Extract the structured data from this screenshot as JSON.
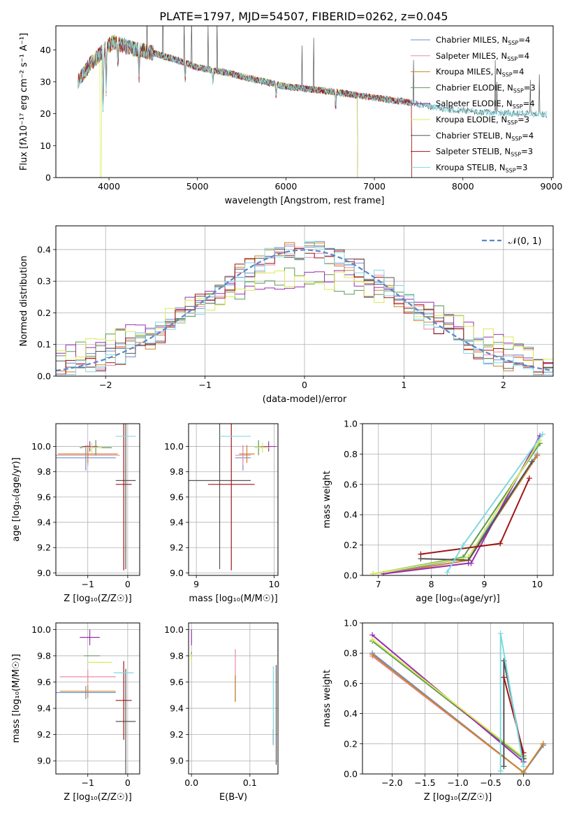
{
  "title": "PLATE=1797, MJD=54507, FIBERID=0262, z=0.045",
  "series": [
    {
      "key": "chabrier_miles",
      "name": "Chabrier MILES",
      "nssp": "4",
      "color": "#6a8fd0"
    },
    {
      "key": "salpeter_miles",
      "name": "Salpeter MILES",
      "nssp": "4",
      "color": "#e88ca6"
    },
    {
      "key": "kroupa_miles",
      "name": "Kroupa MILES",
      "nssp": "4",
      "color": "#c8862a"
    },
    {
      "key": "chabrier_elodie",
      "name": "Chabrier ELODIE",
      "nssp": "3",
      "color": "#5a9a55"
    },
    {
      "key": "salpeter_elodie",
      "name": "Salpeter ELODIE",
      "nssp": "4",
      "color": "#9a2fb0"
    },
    {
      "key": "kroupa_elodie",
      "name": "Kroupa ELODIE",
      "nssp": "3",
      "color": "#d9ea55"
    },
    {
      "key": "chabrier_stelib",
      "name": "Chabrier STELIB",
      "nssp": "4",
      "color": "#555555"
    },
    {
      "key": "salpeter_stelib",
      "name": "Salpeter STELIB",
      "nssp": "3",
      "color": "#a01515"
    },
    {
      "key": "kroupa_stelib",
      "name": "Kroupa STELIB",
      "nssp": "3",
      "color": "#80d8e0"
    }
  ],
  "chart_data": [
    {
      "id": "spectrum",
      "type": "line",
      "xlabel": "wavelength [Angstrom, rest frame]",
      "ylabel": "Flux [fλ10⁻¹⁷ erg cm⁻² s⁻¹ A⁻¹]",
      "xlim": [
        3400,
        9020
      ],
      "ylim": [
        0,
        47.5
      ],
      "xticks": [
        4000,
        5000,
        6000,
        7000,
        8000,
        9000
      ],
      "yticks": [
        0,
        10,
        20,
        30,
        40
      ],
      "legend": "top-right",
      "continuum": {
        "x": [
          3650,
          3800,
          3950,
          4050,
          4250,
          4500,
          4800,
          5000,
          5300,
          5600,
          6000,
          6500,
          7000,
          7400,
          7800,
          8200,
          8700,
          8950
        ],
        "y": [
          30,
          36,
          40,
          42.5,
          40.5,
          39,
          36.5,
          34.5,
          33,
          31,
          28.5,
          27,
          25,
          23.5,
          21.5,
          20.5,
          20,
          19.8
        ]
      }
    },
    {
      "id": "residuals",
      "type": "bar",
      "xlabel": "(data-model)/error",
      "ylabel": "Normed distribution",
      "xlim": [
        -2.5,
        2.5
      ],
      "ylim": [
        0,
        0.475
      ],
      "xticks": [
        -2,
        -1,
        0,
        1,
        2
      ],
      "yticks": [
        0,
        0.1,
        0.2,
        0.3,
        0.4
      ],
      "grid": true,
      "legend": "top-right",
      "gaussian_label": "𝒩(0, 1)",
      "gaussian": {
        "mean": 0,
        "sigma": 1
      }
    },
    {
      "id": "age-vs-z",
      "type": "scatter",
      "xlabel": "Z [log₁₀(Z/Z☉)]",
      "ylabel": "age  [log₁₀(age/yr)]",
      "xlim": [
        -1.8,
        0.3
      ],
      "ylim": [
        8.98,
        10.18
      ],
      "xticks": [
        -1,
        0
      ],
      "yticks": [
        9.0,
        9.2,
        9.4,
        9.6,
        9.8,
        10.0
      ],
      "grid": true,
      "points": [
        {
          "s": 0,
          "x": -1.05,
          "xerr": 0.75,
          "y": 9.91,
          "yerr": 0.1
        },
        {
          "s": 1,
          "x": -1.0,
          "xerr": 0.8,
          "y": 9.93,
          "yerr": 0.08
        },
        {
          "s": 2,
          "x": -1.0,
          "xerr": 0.75,
          "y": 9.94,
          "yerr": 0.07
        },
        {
          "s": 3,
          "x": -0.8,
          "xerr": 0.4,
          "y": 9.99,
          "yerr": 0.06
        },
        {
          "s": 4,
          "x": -0.95,
          "xerr": 0.2,
          "y": 10.0,
          "yerr": 0.04
        },
        {
          "s": 5,
          "x": -0.9,
          "xerr": 0.25,
          "y": 9.99,
          "yerr": 0.04
        },
        {
          "s": 6,
          "x": -0.05,
          "xerr": 0.25,
          "y": 9.73,
          "yerr": 0.7
        },
        {
          "s": 7,
          "x": -0.1,
          "xerr": 0.2,
          "y": 9.7,
          "yerr": 0.68
        },
        {
          "s": 8,
          "x": -0.05,
          "xerr": 0.25,
          "y": 10.08,
          "yerr": 0.0
        }
      ]
    },
    {
      "id": "age-vs-mass",
      "type": "scatter",
      "xlabel": "mass [log₁₀(M/M☉)]",
      "ylabel": "",
      "xlim": [
        8.9,
        10.05
      ],
      "ylim": [
        8.98,
        10.18
      ],
      "xticks": [
        9,
        10
      ],
      "yticks": [
        9.0,
        9.2,
        9.4,
        9.6,
        9.8,
        10.0
      ],
      "grid": true,
      "points": [
        {
          "s": 0,
          "x": 9.6,
          "xerr": 0.1,
          "y": 9.91,
          "yerr": 0.1
        },
        {
          "s": 1,
          "x": 9.6,
          "xerr": 0.1,
          "y": 9.93,
          "yerr": 0.08
        },
        {
          "s": 2,
          "x": 9.65,
          "xerr": 0.1,
          "y": 9.94,
          "yerr": 0.07
        },
        {
          "s": 3,
          "x": 9.8,
          "xerr": 0.05,
          "y": 9.99,
          "yerr": 0.06
        },
        {
          "s": 4,
          "x": 9.93,
          "xerr": 0.1,
          "y": 10.0,
          "yerr": 0.04
        },
        {
          "s": 5,
          "x": 9.85,
          "xerr": 0.1,
          "y": 9.99,
          "yerr": 0.04
        },
        {
          "s": 6,
          "x": 9.3,
          "xerr": 0.4,
          "y": 9.73,
          "yerr": 0.7
        },
        {
          "s": 7,
          "x": 9.45,
          "xerr": 0.3,
          "y": 9.7,
          "yerr": 0.68
        },
        {
          "s": 8,
          "x": 9.5,
          "xerr": 0.2,
          "y": 10.08,
          "yerr": 0.0
        }
      ]
    },
    {
      "id": "weight-vs-age",
      "type": "line",
      "xlabel": "age  [log₁₀(age/yr)]",
      "ylabel": "mass weight",
      "xlim": [
        6.7,
        10.3
      ],
      "ylim": [
        0,
        1.0
      ],
      "xticks": [
        7,
        8,
        9,
        10
      ],
      "yticks": [
        0.0,
        0.2,
        0.4,
        0.6,
        0.8,
        1.0
      ],
      "grid": true,
      "lines": [
        {
          "s": 0,
          "x": [
            7.1,
            8.7,
            10.0
          ],
          "y": [
            0.01,
            0.12,
            0.8
          ]
        },
        {
          "s": 1,
          "x": [
            7.1,
            8.7,
            10.0
          ],
          "y": [
            0.01,
            0.1,
            0.79
          ]
        },
        {
          "s": 2,
          "x": [
            7.1,
            8.7,
            10.0
          ],
          "y": [
            0.01,
            0.1,
            0.79
          ]
        },
        {
          "s": 3,
          "x": [
            6.9,
            8.6,
            10.05
          ],
          "y": [
            0.01,
            0.12,
            0.87
          ]
        },
        {
          "s": 4,
          "x": [
            7.1,
            8.7,
            8.75,
            10.05
          ],
          "y": [
            0.01,
            0.08,
            0.08,
            0.92
          ]
        },
        {
          "s": 5,
          "x": [
            6.9,
            8.7,
            10.05
          ],
          "y": [
            0.01,
            0.12,
            0.89
          ]
        },
        {
          "s": 6,
          "x": [
            7.8,
            8.7,
            9.9
          ],
          "y": [
            0.11,
            0.1,
            0.75
          ]
        },
        {
          "s": 7,
          "x": [
            7.8,
            9.3,
            9.85
          ],
          "y": [
            0.14,
            0.21,
            0.64
          ]
        },
        {
          "s": 8,
          "x": [
            8.3,
            8.6,
            10.1
          ],
          "y": [
            0.02,
            0.2,
            0.93
          ]
        }
      ]
    },
    {
      "id": "mass-vs-z",
      "type": "scatter",
      "xlabel": "Z [log₁₀(Z/Z☉)]",
      "ylabel": "mass [log₁₀(M/M☉)]",
      "xlim": [
        -1.8,
        0.3
      ],
      "ylim": [
        8.9,
        10.05
      ],
      "xticks": [
        -1,
        0
      ],
      "yticks": [
        9.0,
        9.2,
        9.4,
        9.6,
        9.8,
        10.0
      ],
      "grid": true,
      "points": [
        {
          "s": 0,
          "x": -1.05,
          "xerr": 0.75,
          "y": 9.52,
          "yerr": 0.05
        },
        {
          "s": 1,
          "x": -1.0,
          "xerr": 0.7,
          "y": 9.64,
          "yerr": 0.05
        },
        {
          "s": 2,
          "x": -1.0,
          "xerr": 0.7,
          "y": 9.53,
          "yerr": 0.05
        },
        {
          "s": 3,
          "x": -0.9,
          "xerr": 0.2,
          "y": 9.8,
          "yerr": 0.0
        },
        {
          "s": 4,
          "x": -0.95,
          "xerr": 0.25,
          "y": 9.94,
          "yerr": 0.06
        },
        {
          "s": 5,
          "x": -0.7,
          "xerr": 0.3,
          "y": 9.75,
          "yerr": 0.0
        },
        {
          "s": 6,
          "x": -0.05,
          "xerr": 0.25,
          "y": 9.3,
          "yerr": 0.4
        },
        {
          "s": 7,
          "x": -0.1,
          "xerr": 0.2,
          "y": 9.46,
          "yerr": 0.3
        },
        {
          "s": 8,
          "x": -0.1,
          "xerr": 0.25,
          "y": 9.67,
          "yerr": 0.0
        }
      ]
    },
    {
      "id": "mass-vs-ebv",
      "type": "scatter",
      "xlabel": "E(B-V)",
      "ylabel": "",
      "xlim": [
        -0.005,
        0.148
      ],
      "ylim": [
        8.9,
        10.05
      ],
      "xticks": [
        0.0,
        0.1
      ],
      "yticks": [
        9.0,
        9.2,
        9.4,
        9.6,
        9.8,
        10.0
      ],
      "grid": true,
      "points": [
        {
          "s": 0,
          "x": 0.075,
          "xerr": 0,
          "y": 9.55,
          "yerr": 0.1
        },
        {
          "s": 1,
          "x": 0.075,
          "xerr": 0,
          "y": 9.65,
          "yerr": 0.2
        },
        {
          "s": 2,
          "x": 0.075,
          "xerr": 0,
          "y": 9.55,
          "yerr": 0.1
        },
        {
          "s": 3,
          "x": 0.0,
          "xerr": 0,
          "y": 9.8,
          "yerr": 0.03
        },
        {
          "s": 4,
          "x": 0.0,
          "xerr": 0,
          "y": 9.94,
          "yerr": 0.06
        },
        {
          "s": 5,
          "x": 0.0,
          "xerr": 0,
          "y": 9.78,
          "yerr": 0.03
        },
        {
          "s": 6,
          "x": 0.145,
          "xerr": 0,
          "y": 9.35,
          "yerr": 0.38
        },
        {
          "s": 7,
          "x": 0.14,
          "xerr": 0,
          "y": 9.18,
          "yerr": 0.06
        },
        {
          "s": 8,
          "x": 0.14,
          "xerr": 0,
          "y": 9.42,
          "yerr": 0.3
        }
      ]
    },
    {
      "id": "weight-vs-z",
      "type": "line",
      "xlabel": "Z [log₁₀(Z/Z☉)]",
      "ylabel": "mass weight",
      "xlim": [
        -2.45,
        0.45
      ],
      "ylim": [
        0,
        1.0
      ],
      "xticks": [
        -2.0,
        -1.5,
        -1.0,
        -0.5,
        0.0
      ],
      "yticks": [
        0.0,
        0.2,
        0.4,
        0.6,
        0.8,
        1.0
      ],
      "grid": true,
      "lines": [
        {
          "s": 0,
          "x": [
            -2.3,
            0.0,
            0.3
          ],
          "y": [
            0.8,
            0.01,
            0.19
          ]
        },
        {
          "s": 1,
          "x": [
            -2.3,
            0.0,
            0.3
          ],
          "y": [
            0.78,
            0.01,
            0.2
          ]
        },
        {
          "s": 2,
          "x": [
            -2.3,
            0.0,
            0.3
          ],
          "y": [
            0.79,
            0.01,
            0.2
          ]
        },
        {
          "s": 3,
          "x": [
            -2.3,
            0.0,
            0.0
          ],
          "y": [
            0.88,
            0.1,
            0.12
          ]
        },
        {
          "s": 4,
          "x": [
            -2.3,
            0.0,
            0.0
          ],
          "y": [
            0.92,
            0.08,
            0.08
          ]
        },
        {
          "s": 5,
          "x": [
            -2.3,
            0.0
          ],
          "y": [
            0.89,
            0.11
          ]
        },
        {
          "s": 6,
          "x": [
            -0.3,
            -0.3,
            0.0,
            0.0
          ],
          "y": [
            0.05,
            0.75,
            0.1,
            0.1
          ]
        },
        {
          "s": 7,
          "x": [
            -0.3,
            0.0
          ],
          "y": [
            0.64,
            0.14
          ]
        },
        {
          "s": 8,
          "x": [
            -0.35,
            -0.35,
            0.0
          ],
          "y": [
            0.02,
            0.93,
            0.05
          ]
        }
      ]
    }
  ]
}
